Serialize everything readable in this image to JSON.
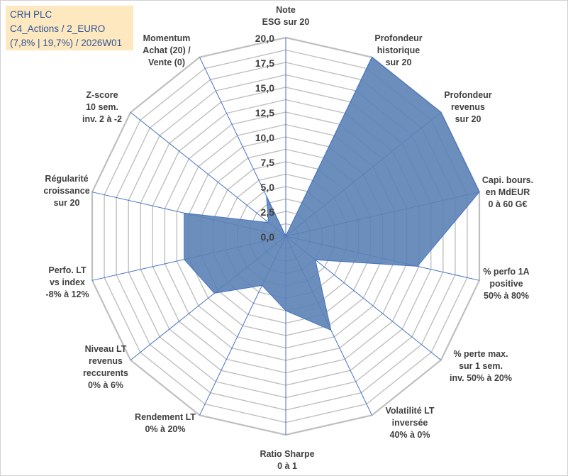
{
  "title": {
    "line1": "CRH PLC",
    "line2": "C4_Actions / 2_EURO",
    "line3": "(7,8% | 19,7%) / 2026W01"
  },
  "colors": {
    "fill": "#5b82b5",
    "stroke": "#4472c4",
    "grid": "#bfbfbf",
    "text": "#404040",
    "title_bg": "#fde8c0",
    "title_text": "#2f5597"
  },
  "chart_data": {
    "type": "radar",
    "rmin": 0,
    "rmax": 20,
    "ticks": [
      "0,0",
      "2,5",
      "5,0",
      "7,5",
      "10,0",
      "12,5",
      "15,0",
      "17,5",
      "20,0"
    ],
    "categories": [
      {
        "lines": [
          "Note",
          "ESG sur 20"
        ],
        "value": 0
      },
      {
        "lines": [
          "Profondeur",
          "historique",
          "sur 20"
        ],
        "value": 20
      },
      {
        "lines": [
          "Profondeur",
          "revenus",
          "sur 20"
        ],
        "value": 20
      },
      {
        "lines": [
          "Capi. bours.",
          "en MdEUR",
          "0 à 60 G€"
        ],
        "value": 20
      },
      {
        "lines": [
          "% perfo 1A",
          "positive",
          "50% à 80%"
        ],
        "value": 13.6
      },
      {
        "lines": [
          "% perte max.",
          "sur 1 sem.",
          "inv. 50% à 20%"
        ],
        "value": 3.8
      },
      {
        "lines": [
          "Volatilité LT",
          "inversée",
          "40% à 0%"
        ],
        "value": 10.5
      },
      {
        "lines": [
          "Ratio Sharpe",
          "0 à 1"
        ],
        "value": 7.5
      },
      {
        "lines": [
          "Rendement LT",
          "0% à 20%"
        ],
        "value": 5.5
      },
      {
        "lines": [
          "Niveau LT",
          "revenus",
          "reccurents",
          "0% à 6%"
        ],
        "value": 9.2
      },
      {
        "lines": [
          "Perfo. LT",
          "vs index",
          "-8% à 12%"
        ],
        "value": 10.5
      },
      {
        "lines": [
          "Régularité",
          "croissance",
          "sur 20"
        ],
        "value": 10.5
      },
      {
        "lines": [
          "Z-score",
          "10 sem.",
          "inv. 2 à -2"
        ],
        "value": 2.2
      },
      {
        "lines": [
          "Momentum",
          "Achat (20) /",
          "Vente (0)"
        ],
        "value": 4.5
      }
    ]
  }
}
